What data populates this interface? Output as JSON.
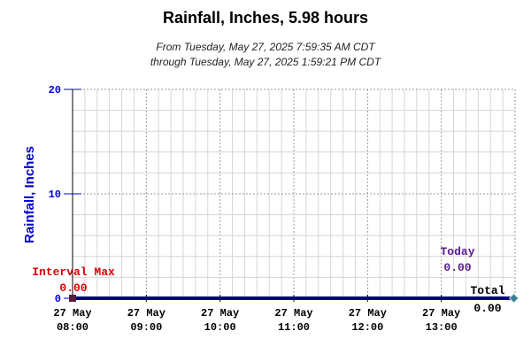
{
  "chart_data": {
    "type": "line",
    "title": "Rainfall, Inches, 5.98 hours",
    "subtitle_lines": [
      "From Tuesday, May 27, 2025 7:59:35 AM CDT",
      "through Tuesday, May 27, 2025 1:59:21 PM CDT"
    ],
    "ylabel": "Rainfall, Inches",
    "ylim": [
      0,
      20
    ],
    "yticks": [
      0,
      10,
      20
    ],
    "xlim": [
      "08:00",
      "14:00"
    ],
    "xticks": [
      {
        "date": "27 May",
        "time": "08:00"
      },
      {
        "date": "27 May",
        "time": "09:00"
      },
      {
        "date": "27 May",
        "time": "10:00"
      },
      {
        "date": "27 May",
        "time": "11:00"
      },
      {
        "date": "27 May",
        "time": "12:00"
      },
      {
        "date": "27 May",
        "time": "13:00"
      }
    ],
    "series": [
      {
        "values": [
          {
            "x": "08:00",
            "y": 0
          },
          {
            "x": "13:59",
            "y": 0
          }
        ]
      }
    ],
    "grid": true,
    "annotations": {
      "interval_max": {
        "label": "Interval Max",
        "value": "0.00"
      },
      "today": {
        "label": "Today",
        "value": "0.00"
      },
      "total": {
        "label": "Total",
        "value": "0.00"
      }
    }
  },
  "colors": {
    "axis_label": "#0000cc",
    "line": "#000080",
    "interval_max": "#dd0000",
    "today": "#5a1a8a",
    "total": "#000000",
    "end_marker": "#3a7a9a"
  }
}
